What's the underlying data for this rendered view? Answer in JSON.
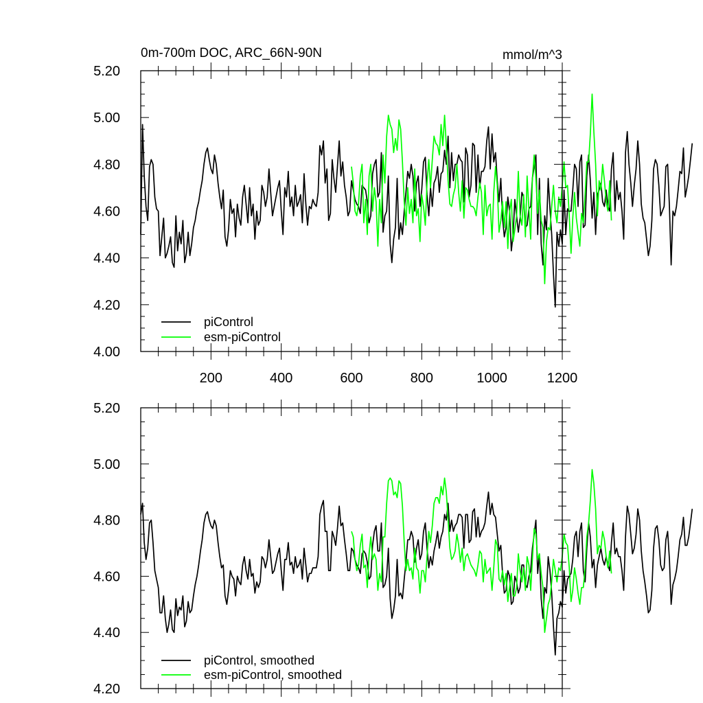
{
  "chart_data": [
    {
      "type": "line",
      "title": "0m-700m DOC, ARC_66N-90N",
      "units": "mmol/m^3",
      "xlim": [
        0,
        1200
      ],
      "ylim": [
        4.0,
        5.2
      ],
      "xticks": [
        200,
        400,
        600,
        800,
        1000,
        1200
      ],
      "xtick_labels": [
        "200",
        "400",
        "600",
        "800",
        "1000",
        "1200"
      ],
      "yticks": [
        4.0,
        4.2,
        4.4,
        4.6,
        4.8,
        5.0,
        5.2
      ],
      "ytick_labels": [
        "4.00",
        "4.20",
        "4.40",
        "4.60",
        "4.80",
        "5.00",
        "5.20"
      ],
      "legend_position": "bottom-left",
      "series": [
        {
          "name": "piControl",
          "color": "#000000",
          "x_start": 0,
          "x_step": 5,
          "values": [
            4.5,
            4.97,
            4.75,
            4.62,
            4.56,
            4.79,
            4.82,
            4.8,
            4.66,
            4.61,
            4.6,
            4.41,
            4.49,
            4.57,
            4.4,
            4.42,
            4.45,
            4.49,
            4.38,
            4.36,
            4.58,
            4.43,
            4.51,
            4.46,
            4.56,
            4.38,
            4.42,
            4.51,
            4.41,
            4.46,
            4.53,
            4.56,
            4.61,
            4.64,
            4.69,
            4.73,
            4.8,
            4.85,
            4.87,
            4.82,
            4.78,
            4.76,
            4.84,
            4.8,
            4.72,
            4.66,
            4.61,
            4.69,
            4.49,
            4.45,
            4.52,
            4.65,
            4.59,
            4.61,
            4.49,
            4.63,
            4.57,
            4.54,
            4.66,
            4.71,
            4.63,
            4.55,
            4.7,
            4.58,
            4.63,
            4.48,
            4.6,
            4.54,
            4.56,
            4.71,
            4.68,
            4.62,
            4.66,
            4.78,
            4.68,
            4.58,
            4.62,
            4.66,
            4.7,
            4.73,
            4.6,
            4.5,
            4.7,
            4.66,
            4.77,
            4.62,
            4.66,
            4.58,
            4.71,
            4.62,
            4.64,
            4.67,
            4.55,
            4.76,
            4.63,
            4.54,
            4.62,
            4.61,
            4.65,
            4.63,
            4.62,
            4.68,
            4.88,
            4.84,
            4.9,
            4.72,
            4.78,
            4.56,
            4.59,
            4.82,
            4.74,
            4.68,
            4.79,
            4.9,
            4.75,
            4.81,
            4.71,
            4.66,
            4.58,
            4.6,
            4.73,
            4.69,
            4.65,
            4.63,
            4.62,
            4.59,
            4.71,
            4.7,
            4.69,
            4.64,
            4.55,
            4.58,
            4.76,
            4.8,
            4.82,
            4.66,
            4.68,
            4.85,
            4.51,
            4.58,
            4.6,
            4.75,
            4.46,
            4.38,
            4.48,
            4.53,
            4.74,
            4.48,
            4.55,
            4.5,
            4.6,
            4.68,
            4.77,
            4.74,
            4.8,
            4.75,
            4.6,
            4.72,
            4.75,
            4.62,
            4.69,
            4.81,
            4.83,
            4.67,
            4.58,
            4.7,
            4.62,
            4.72,
            4.74,
            4.79,
            4.68,
            4.76,
            4.77,
            4.86,
            4.8,
            4.92,
            4.7,
            4.85,
            4.73,
            4.8,
            4.8,
            4.84,
            4.82,
            4.81,
            4.64,
            4.87,
            4.84,
            4.66,
            4.71,
            4.89,
            4.88,
            4.68,
            4.84,
            4.7,
            4.77,
            4.77,
            4.79,
            4.9,
            4.96,
            4.78,
            4.93,
            4.81,
            4.85,
            4.73,
            4.64,
            4.74,
            4.57,
            4.49,
            4.53,
            4.66,
            4.6,
            4.43,
            4.5,
            4.65,
            4.58,
            4.51,
            4.57,
            4.68,
            4.66,
            4.53,
            4.54,
            4.61,
            4.62,
            4.74,
            4.79,
            4.84,
            4.5,
            4.74,
            4.46,
            4.37,
            4.58,
            4.52,
            4.74,
            4.61,
            4.5,
            4.33,
            4.19,
            4.51,
            4.45,
            4.52,
            4.46,
            4.69,
            4.5,
            4.61,
            4.6,
            4.6,
            4.69,
            4.8,
            4.78,
            4.62,
            4.81,
            4.84,
            4.53,
            4.54,
            4.75,
            4.84,
            4.73,
            4.57,
            4.68,
            4.5,
            4.67,
            4.69,
            4.72,
            4.64,
            4.62,
            4.69,
            4.62,
            4.6,
            4.78,
            4.85,
            4.6,
            4.73,
            4.65,
            4.68,
            4.6,
            4.48,
            4.85,
            4.94,
            4.8,
            4.72,
            4.62,
            4.71,
            4.78,
            4.9,
            4.8,
            4.63,
            4.57,
            4.55,
            4.48,
            4.41,
            4.45,
            4.56,
            4.78,
            4.82,
            4.8,
            4.71,
            4.58,
            4.6,
            4.62,
            4.79,
            4.8,
            4.62,
            4.37,
            4.6,
            4.58,
            4.62,
            4.69,
            4.77,
            4.76,
            4.87,
            4.66,
            4.7,
            4.75,
            4.82,
            4.89
          ]
        },
        {
          "name": "esm-piControl",
          "color": "#00ff00",
          "x_start": 600,
          "x_step": 5,
          "values": [
            4.79,
            4.72,
            4.6,
            4.58,
            4.63,
            4.75,
            4.8,
            4.55,
            4.65,
            4.5,
            4.75,
            4.8,
            4.6,
            4.7,
            4.64,
            4.45,
            4.65,
            4.55,
            4.84,
            4.72,
            4.92,
            5.01,
            4.97,
            4.95,
            4.85,
            4.91,
            4.86,
            4.99,
            4.95,
            4.81,
            4.64,
            4.54,
            4.7,
            4.59,
            4.65,
            4.55,
            4.78,
            4.58,
            4.61,
            4.47,
            4.67,
            4.62,
            4.54,
            4.72,
            4.82,
            4.7,
            4.82,
            4.92,
            4.89,
            4.88,
            4.84,
            4.97,
            4.88,
            5.01,
            4.88,
            4.73,
            4.63,
            4.62,
            4.67,
            4.7,
            4.8,
            4.68,
            4.6,
            4.73,
            4.57,
            4.7,
            4.69,
            4.65,
            4.62,
            4.62,
            4.61,
            4.58,
            4.66,
            4.72,
            4.68,
            4.5,
            4.71,
            4.58,
            4.62,
            4.63,
            4.48,
            4.68,
            4.79,
            4.71,
            4.51,
            4.56,
            4.64,
            4.53,
            4.64,
            4.44,
            4.6,
            4.65,
            4.47,
            4.52,
            4.58,
            4.77,
            4.58,
            4.54,
            4.67,
            4.49,
            4.75,
            4.61,
            4.48,
            4.74,
            4.84,
            4.74,
            4.59,
            4.69,
            4.56,
            4.53,
            4.29,
            4.47,
            4.53,
            4.52,
            4.62,
            4.71,
            4.6,
            4.55,
            4.66,
            4.62,
            4.71,
            4.81,
            4.7,
            4.71,
            4.58,
            4.42,
            4.57,
            4.68,
            4.57,
            4.51,
            4.45,
            4.59,
            4.55,
            4.67,
            4.81,
            4.81,
            4.93,
            5.1,
            4.94,
            4.8,
            4.58,
            4.73,
            4.69,
            4.8,
            4.73,
            4.64,
            4.6,
            4.73,
            4.56
          ]
        }
      ]
    },
    {
      "type": "line",
      "title": "",
      "xlim": [
        0,
        1200
      ],
      "ylim": [
        4.2,
        5.2
      ],
      "xticks": [
        200,
        400,
        600,
        800,
        1000,
        1200
      ],
      "yticks": [
        4.2,
        4.4,
        4.6,
        4.8,
        5.0,
        5.2
      ],
      "ytick_labels": [
        "4.20",
        "4.40",
        "4.60",
        "4.80",
        "5.00",
        "5.20"
      ],
      "legend_position": "bottom-left",
      "series": [
        {
          "name": "piControl, smoothed",
          "color": "#000000",
          "x_start": 0,
          "x_step": 5,
          "values": [
            4.82,
            4.86,
            4.72,
            4.66,
            4.7,
            4.79,
            4.8,
            4.72,
            4.62,
            4.59,
            4.56,
            4.47,
            4.47,
            4.53,
            4.45,
            4.4,
            4.43,
            4.48,
            4.41,
            4.4,
            4.52,
            4.46,
            4.49,
            4.48,
            4.53,
            4.42,
            4.44,
            4.51,
            4.47,
            4.48,
            4.53,
            4.57,
            4.6,
            4.64,
            4.69,
            4.73,
            4.79,
            4.82,
            4.83,
            4.8,
            4.78,
            4.77,
            4.8,
            4.78,
            4.72,
            4.67,
            4.63,
            4.64,
            4.53,
            4.5,
            4.55,
            4.62,
            4.6,
            4.59,
            4.53,
            4.6,
            4.58,
            4.57,
            4.64,
            4.67,
            4.62,
            4.59,
            4.66,
            4.6,
            4.61,
            4.54,
            4.58,
            4.56,
            4.58,
            4.67,
            4.66,
            4.63,
            4.66,
            4.73,
            4.67,
            4.61,
            4.62,
            4.65,
            4.68,
            4.7,
            4.62,
            4.55,
            4.66,
            4.66,
            4.72,
            4.64,
            4.65,
            4.61,
            4.67,
            4.63,
            4.64,
            4.66,
            4.59,
            4.7,
            4.64,
            4.58,
            4.61,
            4.61,
            4.63,
            4.63,
            4.63,
            4.67,
            4.82,
            4.85,
            4.87,
            4.76,
            4.76,
            4.62,
            4.62,
            4.76,
            4.74,
            4.71,
            4.77,
            4.85,
            4.78,
            4.79,
            4.73,
            4.68,
            4.62,
            4.62,
            4.7,
            4.69,
            4.66,
            4.64,
            4.63,
            4.61,
            4.68,
            4.69,
            4.68,
            4.65,
            4.59,
            4.6,
            4.71,
            4.76,
            4.78,
            4.69,
            4.69,
            4.79,
            4.56,
            4.57,
            4.6,
            4.7,
            4.52,
            4.45,
            4.48,
            4.53,
            4.66,
            4.53,
            4.54,
            4.52,
            4.59,
            4.65,
            4.73,
            4.73,
            4.76,
            4.74,
            4.65,
            4.7,
            4.73,
            4.66,
            4.68,
            4.76,
            4.79,
            4.7,
            4.63,
            4.67,
            4.64,
            4.69,
            4.72,
            4.76,
            4.7,
            4.74,
            4.76,
            4.82,
            4.8,
            4.86,
            4.76,
            4.8,
            4.76,
            4.78,
            4.79,
            4.82,
            4.82,
            4.81,
            4.7,
            4.82,
            4.82,
            4.72,
            4.73,
            4.83,
            4.84,
            4.74,
            4.81,
            4.74,
            4.76,
            4.77,
            4.79,
            4.85,
            4.9,
            4.82,
            4.86,
            4.82,
            4.81,
            4.75,
            4.69,
            4.71,
            4.61,
            4.54,
            4.55,
            4.62,
            4.6,
            4.5,
            4.51,
            4.6,
            4.58,
            4.54,
            4.56,
            4.64,
            4.64,
            4.57,
            4.56,
            4.6,
            4.62,
            4.7,
            4.75,
            4.8,
            4.61,
            4.68,
            4.52,
            4.45,
            4.56,
            4.54,
            4.67,
            4.62,
            4.54,
            4.42,
            4.32,
            4.45,
            4.47,
            4.51,
            4.49,
            4.62,
            4.54,
            4.59,
            4.6,
            4.61,
            4.66,
            4.74,
            4.76,
            4.67,
            4.76,
            4.79,
            4.62,
            4.58,
            4.7,
            4.79,
            4.74,
            4.63,
            4.66,
            4.56,
            4.64,
            4.67,
            4.7,
            4.66,
            4.64,
            4.67,
            4.64,
            4.62,
            4.72,
            4.79,
            4.68,
            4.7,
            4.67,
            4.67,
            4.62,
            4.55,
            4.74,
            4.85,
            4.82,
            4.75,
            4.68,
            4.7,
            4.75,
            4.84,
            4.8,
            4.69,
            4.62,
            4.58,
            4.53,
            4.47,
            4.48,
            4.55,
            4.7,
            4.77,
            4.78,
            4.73,
            4.64,
            4.62,
            4.63,
            4.73,
            4.76,
            4.66,
            4.5,
            4.57,
            4.59,
            4.62,
            4.67,
            4.73,
            4.75,
            4.81,
            4.71,
            4.71,
            4.74,
            4.79,
            4.84
          ]
        },
        {
          "name": "esm-piControl, smoothed",
          "color": "#00ff00",
          "x_start": 600,
          "x_step": 5,
          "values": [
            4.76,
            4.74,
            4.66,
            4.62,
            4.64,
            4.71,
            4.75,
            4.63,
            4.64,
            4.56,
            4.68,
            4.74,
            4.66,
            4.68,
            4.66,
            4.55,
            4.61,
            4.58,
            4.74,
            4.74,
            4.86,
            4.94,
            4.95,
            4.94,
            4.89,
            4.9,
            4.88,
            4.94,
            4.93,
            4.85,
            4.72,
            4.62,
            4.66,
            4.62,
            4.63,
            4.59,
            4.7,
            4.63,
            4.62,
            4.54,
            4.62,
            4.62,
            4.58,
            4.67,
            4.76,
            4.72,
            4.78,
            4.86,
            4.88,
            4.88,
            4.86,
            4.92,
            4.89,
            4.95,
            4.9,
            4.8,
            4.7,
            4.66,
            4.67,
            4.69,
            4.75,
            4.71,
            4.65,
            4.7,
            4.62,
            4.67,
            4.68,
            4.66,
            4.64,
            4.63,
            4.62,
            4.6,
            4.64,
            4.69,
            4.68,
            4.58,
            4.66,
            4.61,
            4.62,
            4.63,
            4.55,
            4.63,
            4.73,
            4.71,
            4.59,
            4.58,
            4.62,
            4.57,
            4.61,
            4.51,
            4.56,
            4.61,
            4.53,
            4.53,
            4.56,
            4.68,
            4.62,
            4.58,
            4.63,
            4.55,
            4.67,
            4.64,
            4.55,
            4.66,
            4.77,
            4.75,
            4.66,
            4.68,
            4.61,
            4.56,
            4.4,
            4.45,
            4.5,
            4.52,
            4.58,
            4.66,
            4.62,
            4.58,
            4.63,
            4.62,
            4.67,
            4.75,
            4.72,
            4.71,
            4.63,
            4.51,
            4.55,
            4.63,
            4.59,
            4.54,
            4.5,
            4.56,
            4.56,
            4.63,
            4.74,
            4.79,
            4.87,
            4.98,
            4.93,
            4.84,
            4.68,
            4.71,
            4.7,
            4.76,
            4.73,
            4.67,
            4.63,
            4.69,
            4.61
          ]
        }
      ]
    }
  ]
}
